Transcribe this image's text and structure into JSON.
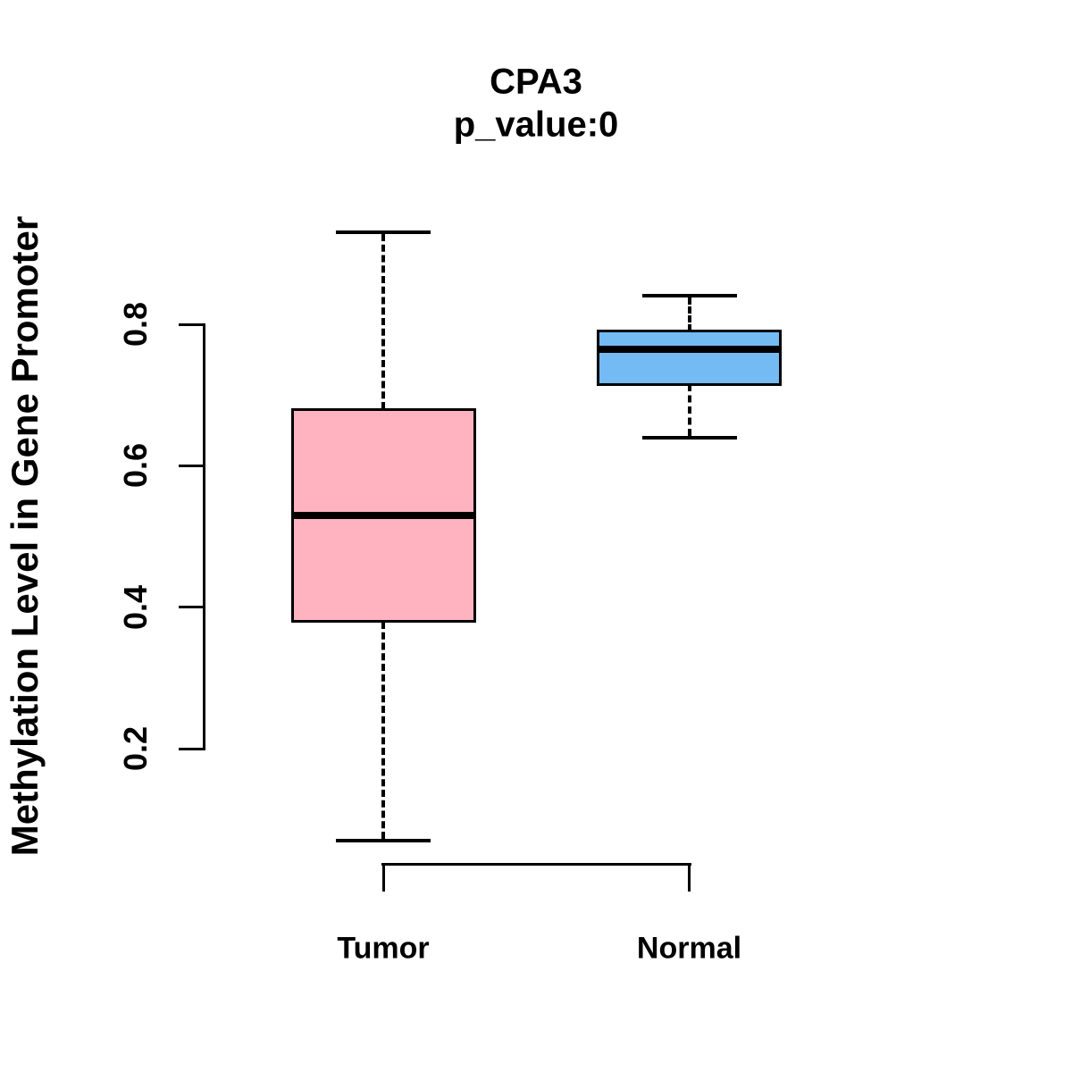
{
  "chart_data": {
    "type": "boxplot",
    "title": "CPA3",
    "subtitle": "p_value:0",
    "xlabel": "",
    "ylabel": "Methylation Level in Gene Promoter",
    "categories": [
      "Tumor",
      "Normal"
    ],
    "yticks": [
      {
        "value": 0.2,
        "label": "0.2"
      },
      {
        "value": 0.4,
        "label": "0.4"
      },
      {
        "value": 0.6,
        "label": "0.6"
      },
      {
        "value": 0.8,
        "label": "0.8"
      }
    ],
    "ylim": [
      0.03,
      0.97
    ],
    "grid": false,
    "legend": "none",
    "orientation": "vertical",
    "series": [
      {
        "name": "Tumor",
        "fill_color": "#FFB3C1",
        "whisker_low": 0.07,
        "q1": 0.38,
        "median": 0.53,
        "q3": 0.68,
        "whisker_high": 0.93
      },
      {
        "name": "Normal",
        "fill_color": "#74BBF4",
        "whisker_low": 0.64,
        "q1": 0.715,
        "median": 0.765,
        "q3": 0.79,
        "whisker_high": 0.84
      }
    ],
    "style_colors": {
      "box_border": "#000000",
      "median_line": "#000000",
      "axis": "#000000",
      "text": "#000000",
      "background": "#FFFFFF"
    }
  }
}
